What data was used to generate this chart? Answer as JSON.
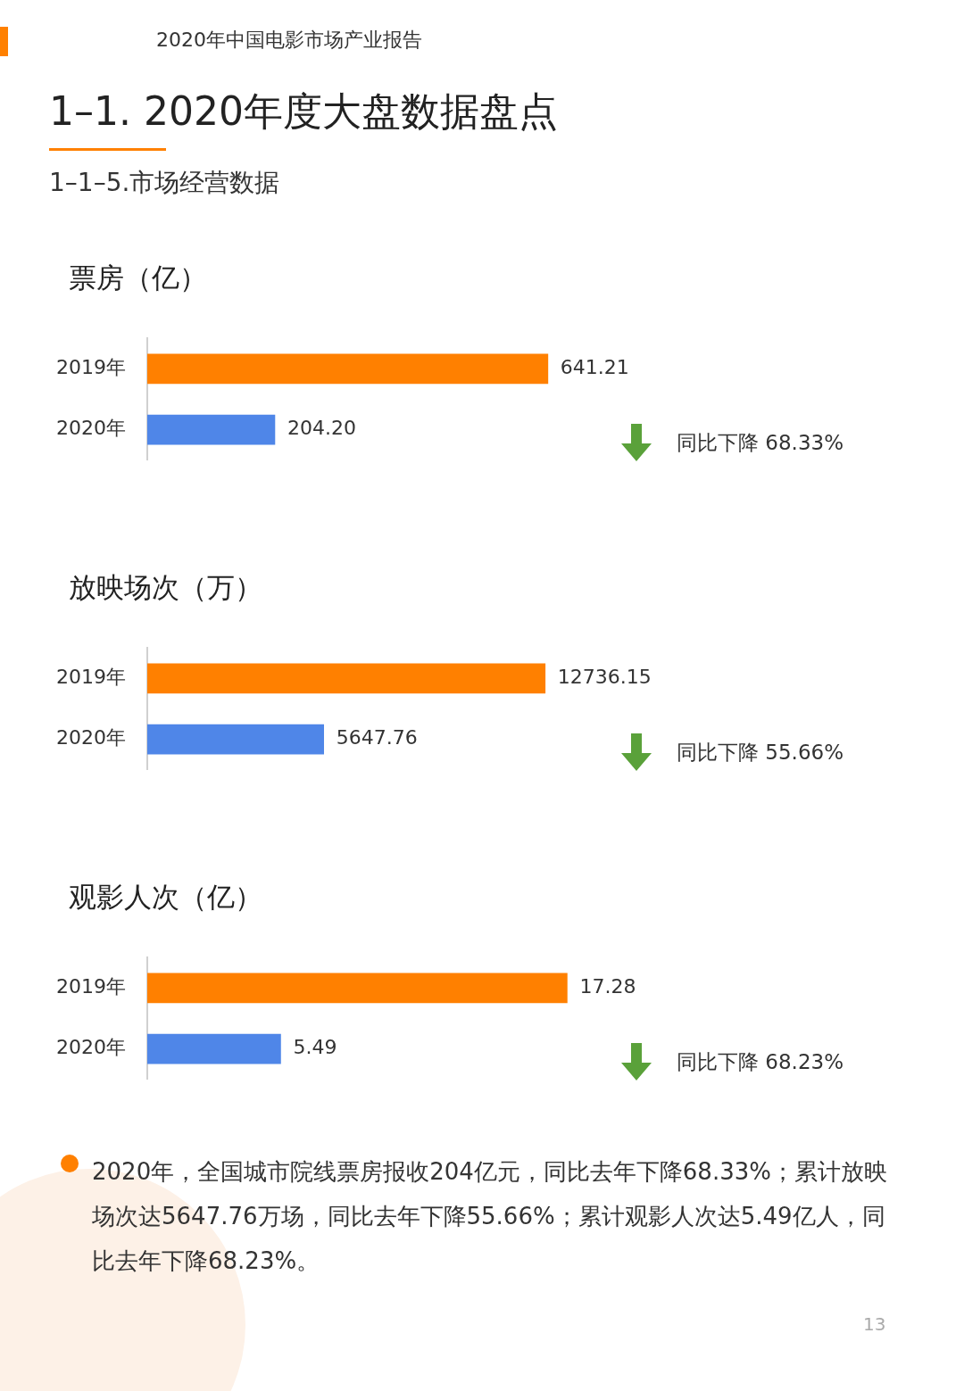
{
  "chart_data": [
    {
      "type": "other",
      "title": "1–1. 2020年度大盘数据盘点",
      "subtitle": "1–1–5.市场经营数据",
      "annotations": [
        "2020年中国电影市场产业报告"
      ]
    },
    {
      "type": "bar",
      "orientation": "horizontal",
      "title": "票房（亿）",
      "categories": [
        "2019年",
        "2020年"
      ],
      "values": [
        641.21,
        204.2
      ],
      "value_labels": [
        "641.21",
        "204.20"
      ],
      "colors": [
        "#ff8000",
        "#4f86e8"
      ],
      "annotations": [
        "同比下降 68.33%"
      ]
    },
    {
      "type": "bar",
      "orientation": "horizontal",
      "title": "放映场次（万）",
      "categories": [
        "2019年",
        "2020年"
      ],
      "values": [
        12736.15,
        5647.76
      ],
      "value_labels": [
        "12736.15",
        "5647.76"
      ],
      "colors": [
        "#ff8000",
        "#4f86e8"
      ],
      "annotations": [
        "同比下降 55.66%"
      ]
    },
    {
      "type": "bar",
      "orientation": "horizontal",
      "title": "观影人次（亿）",
      "categories": [
        "2019年",
        "2020年"
      ],
      "values": [
        17.28,
        5.49
      ],
      "value_labels": [
        "17.28",
        "5.49"
      ],
      "colors": [
        "#ff8000",
        "#4f86e8"
      ],
      "annotations": [
        "同比下降 68.23%"
      ]
    },
    {
      "type": "other",
      "annotations": [
        "2020年，全国城市院线票房报收204亿元，同比去年下降68.33%；累计放映场次达5647.76万场，同比去年下降55.66%；累计观影人次达5.49亿人，同比去年下降68.23%。",
        "13"
      ]
    }
  ]
}
